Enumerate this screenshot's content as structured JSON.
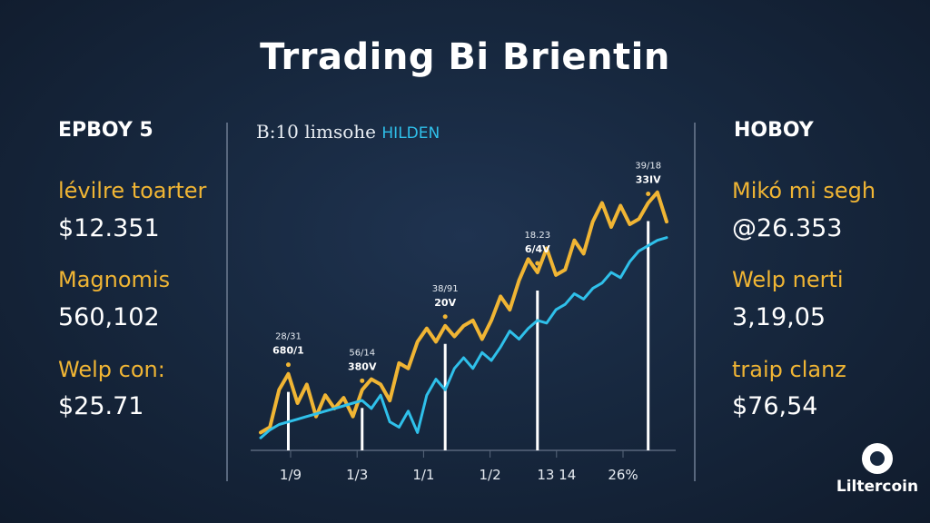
{
  "title": "Trrading Bi Brientin",
  "left_panel": {
    "heading": "EPBOY 5",
    "stats": [
      {
        "label": "lévilre toarter",
        "value": "$12.351"
      },
      {
        "label": "Magnomis",
        "value": "560,102"
      },
      {
        "label": "Welp con:",
        "value": "$25.71"
      }
    ]
  },
  "right_panel": {
    "heading": "HOBOY",
    "stats": [
      {
        "label": "Mikó mi segh",
        "value": "@26.353"
      },
      {
        "label": "Welp nerti",
        "value": "3,19,05"
      },
      {
        "label": "traip clanz",
        "value": "$76,54"
      }
    ]
  },
  "chart_subtitle": "B:10 limsohe",
  "chart_subtitle_accent": "HILDEN",
  "logo": {
    "name": "Liltercoin",
    "icon": "coin-logo-icon"
  },
  "colors": {
    "gold": "#f0b534",
    "cyan": "#2fc0ea"
  },
  "chart_data": {
    "type": "line",
    "x_tick_labels": [
      "1/9",
      "1/3",
      "1/1",
      "1/2",
      "13 14",
      "26%"
    ],
    "series": [
      {
        "color": "#f0b534",
        "values": [
          6,
          8,
          22,
          28,
          17,
          24,
          12,
          20,
          15,
          19,
          12,
          22,
          26,
          24,
          18,
          32,
          30,
          40,
          45,
          40,
          46,
          42,
          46,
          48,
          41,
          48,
          57,
          52,
          63,
          71,
          66,
          75,
          65,
          67,
          78,
          73,
          85,
          92,
          83,
          91,
          84,
          86,
          92,
          96,
          85
        ]
      },
      {
        "color": "#2fc0ea",
        "values": [
          4,
          7,
          9,
          10,
          11,
          12,
          13,
          14,
          15,
          16,
          17,
          18,
          15,
          20,
          10,
          8,
          14,
          6,
          20,
          26,
          22,
          30,
          34,
          30,
          36,
          33,
          38,
          44,
          41,
          45,
          48,
          47,
          52,
          54,
          58,
          56,
          60,
          62,
          66,
          64,
          70,
          74,
          76,
          78,
          79
        ]
      }
    ],
    "annotations": [
      {
        "idx": 3,
        "line1": "28/31",
        "line2": "680/1"
      },
      {
        "idx": 11,
        "line1": "56/14",
        "line2": "380V"
      },
      {
        "idx": 20,
        "line1": "38/91",
        "line2": "20V"
      },
      {
        "idx": 30,
        "line1": "18.23",
        "line2": "6/4V"
      },
      {
        "idx": 42,
        "line1": "39/18",
        "line2": "33IV"
      }
    ],
    "ylim": [
      0,
      100
    ]
  }
}
